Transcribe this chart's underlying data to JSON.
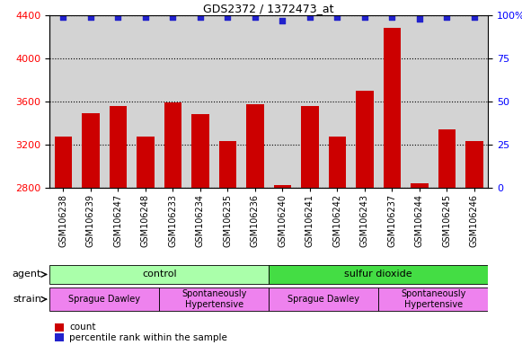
{
  "title": "GDS2372 / 1372473_at",
  "samples": [
    "GSM106238",
    "GSM106239",
    "GSM106247",
    "GSM106248",
    "GSM106233",
    "GSM106234",
    "GSM106235",
    "GSM106236",
    "GSM106240",
    "GSM106241",
    "GSM106242",
    "GSM106243",
    "GSM106237",
    "GSM106244",
    "GSM106245",
    "GSM106246"
  ],
  "counts": [
    3270,
    3490,
    3560,
    3270,
    3590,
    3480,
    3230,
    3570,
    2820,
    3560,
    3270,
    3700,
    4280,
    2840,
    3340,
    3230
  ],
  "percentiles": [
    99,
    99,
    99,
    99,
    99,
    99,
    99,
    99,
    97,
    99,
    99,
    99,
    99,
    98,
    99,
    99
  ],
  "bar_color": "#cc0000",
  "dot_color": "#2222cc",
  "ylim_left": [
    2800,
    4400
  ],
  "ylim_right": [
    0,
    100
  ],
  "yticks_left": [
    2800,
    3200,
    3600,
    4000,
    4400
  ],
  "yticks_right": [
    0,
    25,
    50,
    75,
    100
  ],
  "plot_bg_color": "#d3d3d3",
  "agent_groups": [
    {
      "label": "control",
      "start": 0,
      "end": 8,
      "color": "#aaffaa"
    },
    {
      "label": "sulfur dioxide",
      "start": 8,
      "end": 16,
      "color": "#44dd44"
    }
  ],
  "strain_groups": [
    {
      "label": "Sprague Dawley",
      "start": 0,
      "end": 4,
      "color": "#ee82ee"
    },
    {
      "label": "Spontaneously\nHypertensive",
      "start": 4,
      "end": 8,
      "color": "#ee82ee"
    },
    {
      "label": "Sprague Dawley",
      "start": 8,
      "end": 12,
      "color": "#ee82ee"
    },
    {
      "label": "Spontaneously\nHypertensive",
      "start": 12,
      "end": 16,
      "color": "#ee82ee"
    }
  ],
  "agent_label": "agent",
  "strain_label": "strain",
  "legend_count_label": "count",
  "legend_pct_label": "percentile rank within the sample"
}
